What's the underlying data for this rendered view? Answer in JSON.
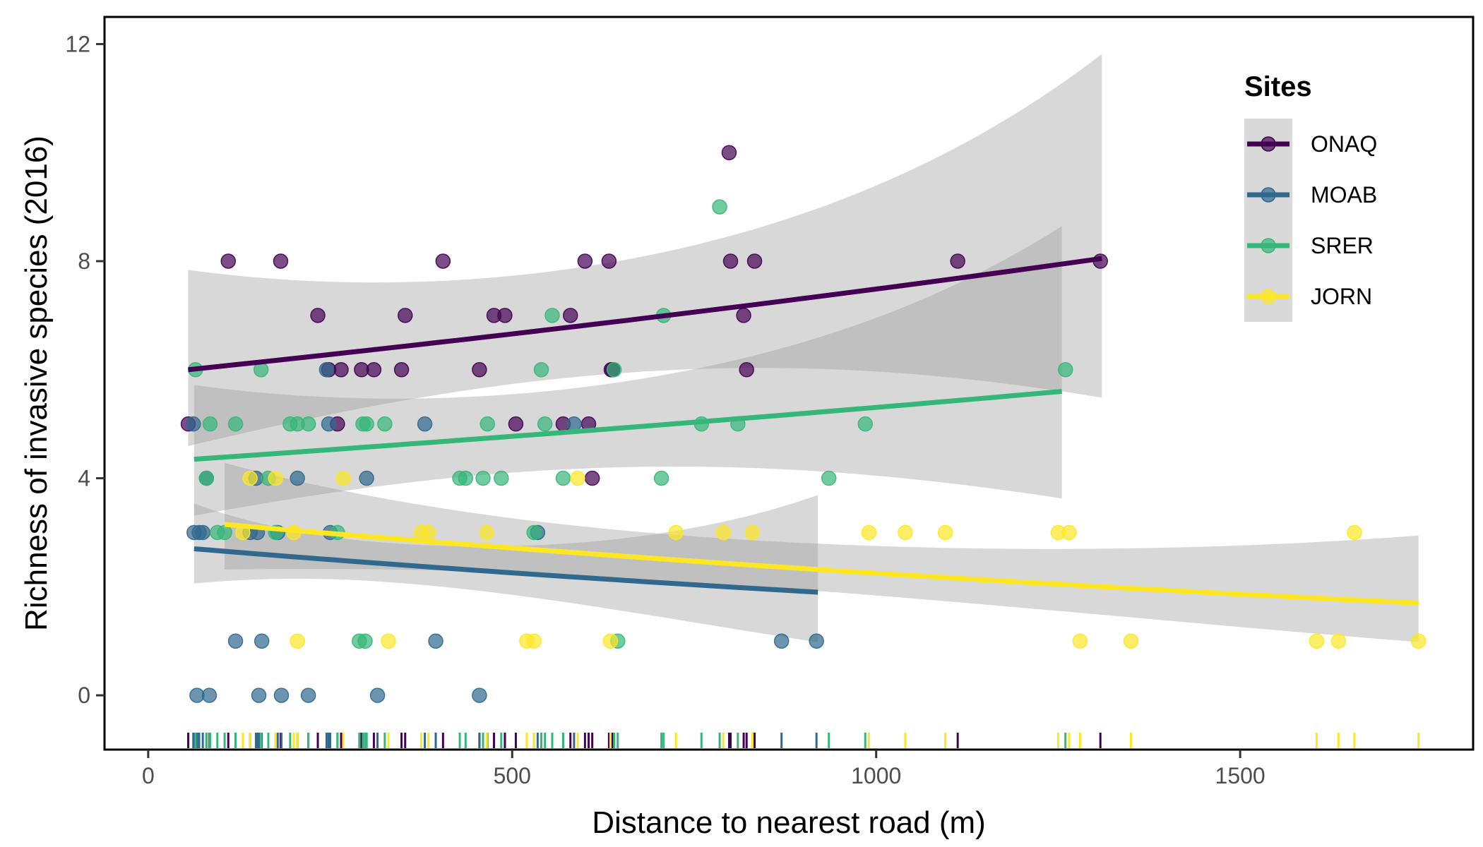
{
  "chart_data": {
    "type": "scatter",
    "xlabel": "Distance to nearest road (m)",
    "ylabel": "Richness of invasive species (2016)",
    "xlim": [
      -60,
      1820
    ],
    "ylim": [
      -1,
      12.5
    ],
    "x_ticks": [
      0,
      500,
      1000,
      1500
    ],
    "y_ticks": [
      0,
      4,
      8,
      12
    ],
    "grid": false,
    "legend": {
      "title": "Sites",
      "position": "top-right"
    },
    "series": [
      {
        "name": "ONAQ",
        "color": "#440154",
        "fit": {
          "x": [
            55,
            1310
          ],
          "y": [
            6.0,
            8.05
          ],
          "ci_low": [
            4.6,
            5.5
          ],
          "ci_high": [
            7.85,
            11.85
          ]
        },
        "points": [
          [
            55,
            5
          ],
          [
            110,
            8
          ],
          [
            182,
            8
          ],
          [
            233,
            7
          ],
          [
            248,
            6
          ],
          [
            260,
            5
          ],
          [
            265,
            6
          ],
          [
            293,
            6
          ],
          [
            310,
            6
          ],
          [
            348,
            6
          ],
          [
            353,
            7
          ],
          [
            405,
            8
          ],
          [
            455,
            6
          ],
          [
            475,
            7
          ],
          [
            490,
            7
          ],
          [
            505,
            5
          ],
          [
            570,
            5
          ],
          [
            580,
            7
          ],
          [
            600,
            8
          ],
          [
            605,
            5
          ],
          [
            610,
            4
          ],
          [
            633,
            8
          ],
          [
            636,
            6
          ],
          [
            638,
            6
          ],
          [
            798,
            10
          ],
          [
            800,
            8
          ],
          [
            818,
            7
          ],
          [
            822,
            6
          ],
          [
            833,
            8
          ],
          [
            1112,
            8
          ],
          [
            1308,
            8
          ]
        ]
      },
      {
        "name": "MOAB",
        "color": "#31688e",
        "fit": {
          "x": [
            63,
            920
          ],
          "y": [
            2.7,
            1.9
          ],
          "ci_low": [
            2.1,
            1.1
          ],
          "ci_high": [
            3.6,
            4.15
          ]
        },
        "points": [
          [
            62,
            5
          ],
          [
            63,
            3
          ],
          [
            67,
            0
          ],
          [
            70,
            3
          ],
          [
            75,
            3
          ],
          [
            80,
            4
          ],
          [
            84,
            0
          ],
          [
            120,
            1
          ],
          [
            140,
            3
          ],
          [
            148,
            4
          ],
          [
            150,
            3
          ],
          [
            152,
            0
          ],
          [
            156,
            1
          ],
          [
            178,
            3
          ],
          [
            183,
            0
          ],
          [
            205,
            4
          ],
          [
            220,
            0
          ],
          [
            245,
            6
          ],
          [
            248,
            5
          ],
          [
            250,
            3
          ],
          [
            300,
            4
          ],
          [
            315,
            0
          ],
          [
            380,
            5
          ],
          [
            395,
            1
          ],
          [
            455,
            0
          ],
          [
            535,
            3
          ],
          [
            585,
            5
          ],
          [
            870,
            1
          ],
          [
            918,
            1
          ]
        ]
      },
      {
        "name": "SRER",
        "color": "#35b779",
        "fit": {
          "x": [
            63,
            1255
          ],
          "y": [
            4.35,
            5.6
          ],
          "ci_low": [
            3.3,
            3.65
          ],
          "ci_high": [
            5.7,
            8.7
          ]
        },
        "points": [
          [
            65,
            6
          ],
          [
            80,
            4
          ],
          [
            85,
            5
          ],
          [
            95,
            3
          ],
          [
            105,
            3
          ],
          [
            120,
            5
          ],
          [
            155,
            6
          ],
          [
            165,
            4
          ],
          [
            175,
            3
          ],
          [
            195,
            5
          ],
          [
            205,
            5
          ],
          [
            220,
            5
          ],
          [
            260,
            3
          ],
          [
            295,
            5
          ],
          [
            300,
            5
          ],
          [
            290,
            1
          ],
          [
            298,
            1
          ],
          [
            325,
            5
          ],
          [
            428,
            4
          ],
          [
            436,
            4
          ],
          [
            460,
            4
          ],
          [
            466,
            5
          ],
          [
            485,
            4
          ],
          [
            530,
            3
          ],
          [
            540,
            6
          ],
          [
            545,
            5
          ],
          [
            555,
            7
          ],
          [
            570,
            4
          ],
          [
            640,
            6
          ],
          [
            645,
            1
          ],
          [
            705,
            4
          ],
          [
            708,
            7
          ],
          [
            760,
            5
          ],
          [
            785,
            9
          ],
          [
            810,
            5
          ],
          [
            935,
            4
          ],
          [
            985,
            5
          ],
          [
            1260,
            6
          ]
        ]
      },
      {
        "name": "JORN",
        "color": "#fde725",
        "fit": {
          "x": [
            105,
            1745
          ],
          "y": [
            3.15,
            1.7
          ],
          "ci_low": [
            2.3,
            0.95
          ],
          "ci_high": [
            4.25,
            2.85
          ]
        },
        "points": [
          [
            130,
            3
          ],
          [
            140,
            4
          ],
          [
            175,
            4
          ],
          [
            200,
            3
          ],
          [
            205,
            1
          ],
          [
            268,
            4
          ],
          [
            330,
            1
          ],
          [
            375,
            3
          ],
          [
            385,
            3
          ],
          [
            465,
            3
          ],
          [
            520,
            1
          ],
          [
            530,
            1
          ],
          [
            590,
            4
          ],
          [
            635,
            1
          ],
          [
            725,
            3
          ],
          [
            790,
            3
          ],
          [
            830,
            3
          ],
          [
            990,
            3
          ],
          [
            1040,
            3
          ],
          [
            1095,
            3
          ],
          [
            1250,
            3
          ],
          [
            1265,
            3
          ],
          [
            1280,
            1
          ],
          [
            1350,
            1
          ],
          [
            1605,
            1
          ],
          [
            1635,
            1
          ],
          [
            1657,
            3
          ],
          [
            1745,
            1
          ]
        ]
      }
    ]
  }
}
